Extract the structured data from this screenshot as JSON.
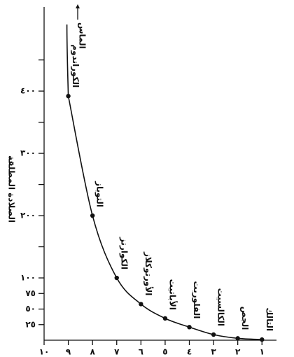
{
  "chart_data": {
    "type": "line",
    "y_axis_label": "الصلادة المطلقة",
    "x": [
      1,
      2,
      3,
      4,
      5,
      6,
      7,
      8,
      9
    ],
    "series": [
      {
        "color": "#111111",
        "values": [
          1,
          3,
          9,
          21,
          35,
          58,
          100,
          200,
          392
        ]
      }
    ],
    "point_labels": [
      "التالك",
      "الجص",
      "الكالسيت",
      "الفلوريت",
      "الأباتيت",
      "الأورتوكلاز",
      "الكوارتز",
      "التوباز",
      "الكوراندوم"
    ],
    "annotations": [
      {
        "text": "الماس",
        "x": 10
      }
    ],
    "xlim": [
      10,
      0.4
    ],
    "xticks": [
      {
        "value": 10,
        "label": "١٠"
      },
      {
        "value": 9,
        "label": "٩"
      },
      {
        "value": 8,
        "label": "٨"
      },
      {
        "value": 7,
        "label": "٧"
      },
      {
        "value": 6,
        "label": "٦"
      },
      {
        "value": 5,
        "label": "٥"
      },
      {
        "value": 4,
        "label": "٤"
      },
      {
        "value": 3,
        "label": "٣"
      },
      {
        "value": 2,
        "label": "٢"
      },
      {
        "value": 1,
        "label": "١"
      }
    ],
    "ylim": [
      0,
      535
    ],
    "yticks": [
      {
        "value": 25,
        "label": "٢٥"
      },
      {
        "value": 50,
        "label": "٥٠"
      },
      {
        "value": 75,
        "label": "٧٥"
      },
      {
        "value": 100,
        "label": "١٠٠"
      },
      {
        "value": 200,
        "label": "٢٠٠"
      },
      {
        "value": 300,
        "label": "٣٠٠"
      },
      {
        "value": 400,
        "label": "٤٠٠"
      }
    ],
    "y_minor_ticks": [
      150,
      250,
      350,
      450
    ]
  }
}
